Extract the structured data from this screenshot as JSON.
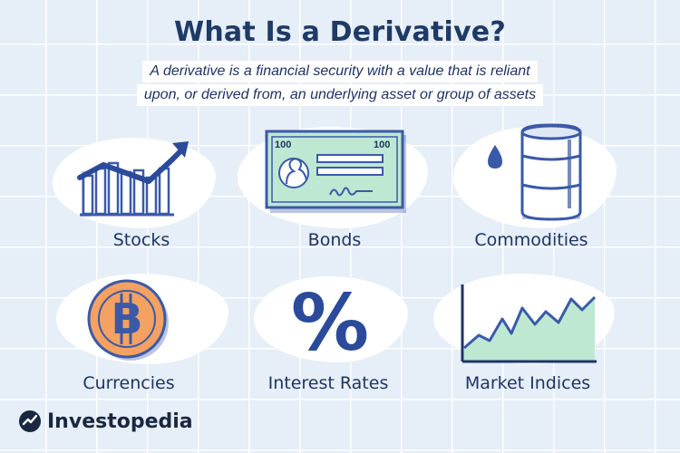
{
  "title": "What Is a Derivative?",
  "subtitle": {
    "line1": "A derivative is a financial security with a value that is reliant",
    "line2": "upon, or derived from, an underlying asset or group of assets"
  },
  "items": [
    {
      "label": "Stocks",
      "icon": "rising-bar-chart-icon"
    },
    {
      "label": "Bonds",
      "icon": "bond-certificate-icon",
      "denomination_left": "100",
      "denomination_right": "100"
    },
    {
      "label": "Commodities",
      "icon": "oil-barrel-icon"
    },
    {
      "label": "Currencies",
      "icon": "bitcoin-coin-icon",
      "symbol": "B"
    },
    {
      "label": "Interest Rates",
      "icon": "percent-icon",
      "symbol": "%"
    },
    {
      "label": "Market Indices",
      "icon": "line-chart-icon"
    }
  ],
  "brand": {
    "name": "Investopedia"
  },
  "colors": {
    "navy": "#1e3a66",
    "blue": "#3a5aa8",
    "mint": "#bfe8d2",
    "orange": "#f4a162",
    "background": "#e6eef7"
  }
}
